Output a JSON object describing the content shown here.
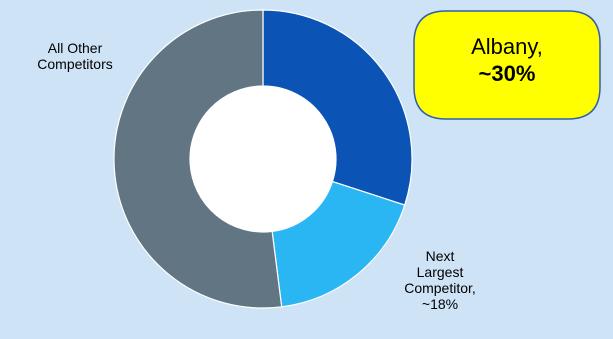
{
  "chart_data": {
    "type": "donut",
    "title": "",
    "slices": [
      {
        "label": "Albany",
        "value": 30,
        "color": "#0b53b4"
      },
      {
        "label": "Next Largest Competitor",
        "value": 18,
        "color": "#29b6f2"
      },
      {
        "label": "All Other Competitors",
        "value": 52,
        "color": "#617582"
      }
    ],
    "labels": {
      "albany_line1": "Albany,",
      "albany_line2": "~30%",
      "next_line1": "Next",
      "next_line2": "Largest",
      "next_line3": "Competitor,",
      "next_line4": "~18%",
      "other_line1": "All Other",
      "other_line2": "Competitors"
    },
    "legend": "none"
  },
  "colors": {
    "background": "#cfe3f7",
    "callout_fill": "#ffff00",
    "callout_stroke": "#2f5fa8"
  }
}
